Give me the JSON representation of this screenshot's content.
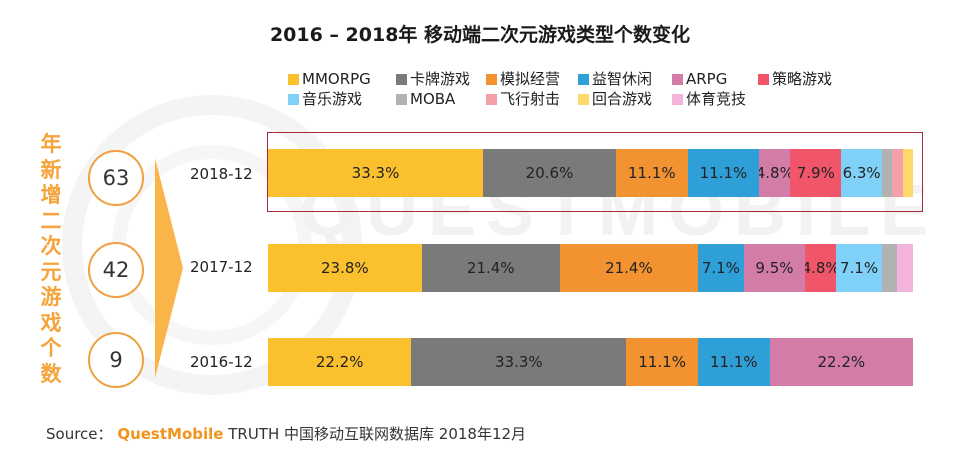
{
  "title": "2016 – 2018年 移动端二次元游戏类型个数变化",
  "legend": [
    {
      "label": "MMORPG",
      "color": "#fbc02d"
    },
    {
      "label": "卡牌游戏",
      "color": "#7a7a7a"
    },
    {
      "label": "模拟经营",
      "color": "#f39230"
    },
    {
      "label": "益智休闲",
      "color": "#2f9fd8"
    },
    {
      "label": "ARPG",
      "color": "#d47ca8"
    },
    {
      "label": "策略游戏",
      "color": "#f0556a"
    },
    {
      "label": "音乐游戏",
      "color": "#7fd1f7"
    },
    {
      "label": "MOBA",
      "color": "#b2b2b2"
    },
    {
      "label": "飞行射击",
      "color": "#f3a0a8"
    },
    {
      "label": "回合游戏",
      "color": "#ffd86b"
    },
    {
      "label": "体育竞技",
      "color": "#f4b3d9"
    }
  ],
  "side": {
    "vertical_label": "年新增二次元游戏个数",
    "counts": [
      "63",
      "42",
      "9"
    ]
  },
  "chart_data": {
    "type": "bar",
    "orientation": "horizontal",
    "stacked": true,
    "categories": [
      "2018-12",
      "2017-12",
      "2016-12"
    ],
    "series": [
      {
        "name": "MMORPG",
        "values": [
          33.3,
          23.8,
          22.2
        ]
      },
      {
        "name": "卡牌游戏",
        "values": [
          20.6,
          21.4,
          33.3
        ]
      },
      {
        "name": "模拟经营",
        "values": [
          11.1,
          21.4,
          11.1
        ]
      },
      {
        "name": "益智休闲",
        "values": [
          11.1,
          7.1,
          11.1
        ]
      },
      {
        "name": "ARPG",
        "values": [
          4.8,
          9.5,
          22.2
        ]
      },
      {
        "name": "策略游戏",
        "values": [
          7.9,
          4.8,
          0
        ]
      },
      {
        "name": "音乐游戏",
        "values": [
          6.3,
          7.1,
          0
        ]
      },
      {
        "name": "MOBA",
        "values": [
          1.6,
          2.4,
          0
        ]
      },
      {
        "name": "飞行射击",
        "values": [
          1.6,
          0,
          0
        ]
      },
      {
        "name": "回合游戏",
        "values": [
          1.6,
          0,
          0
        ]
      },
      {
        "name": "体育竞技",
        "values": [
          0,
          2.4,
          0
        ]
      }
    ],
    "data_labels": [
      [
        "33.3%",
        "20.6%",
        "11.1%",
        "11.1%",
        "4.8%",
        "7.9%",
        "6.3%",
        "",
        "",
        "",
        ""
      ],
      [
        "23.8%",
        "21.4%",
        "21.4%",
        "7.1%",
        "9.5%",
        "4.8%",
        "7.1%",
        "",
        "",
        "",
        ""
      ],
      [
        "22.2%",
        "33.3%",
        "11.1%",
        "11.1%",
        "22.2%",
        "",
        "",
        "",
        "",
        "",
        ""
      ]
    ],
    "highlighted_category": "2018-12"
  },
  "watermark": "QUESTMOBILE",
  "source": {
    "prefix": "Source：",
    "brand": "QuestMobile",
    "rest": "TRUTH 中国移动互联网数据库 2018年12月"
  }
}
